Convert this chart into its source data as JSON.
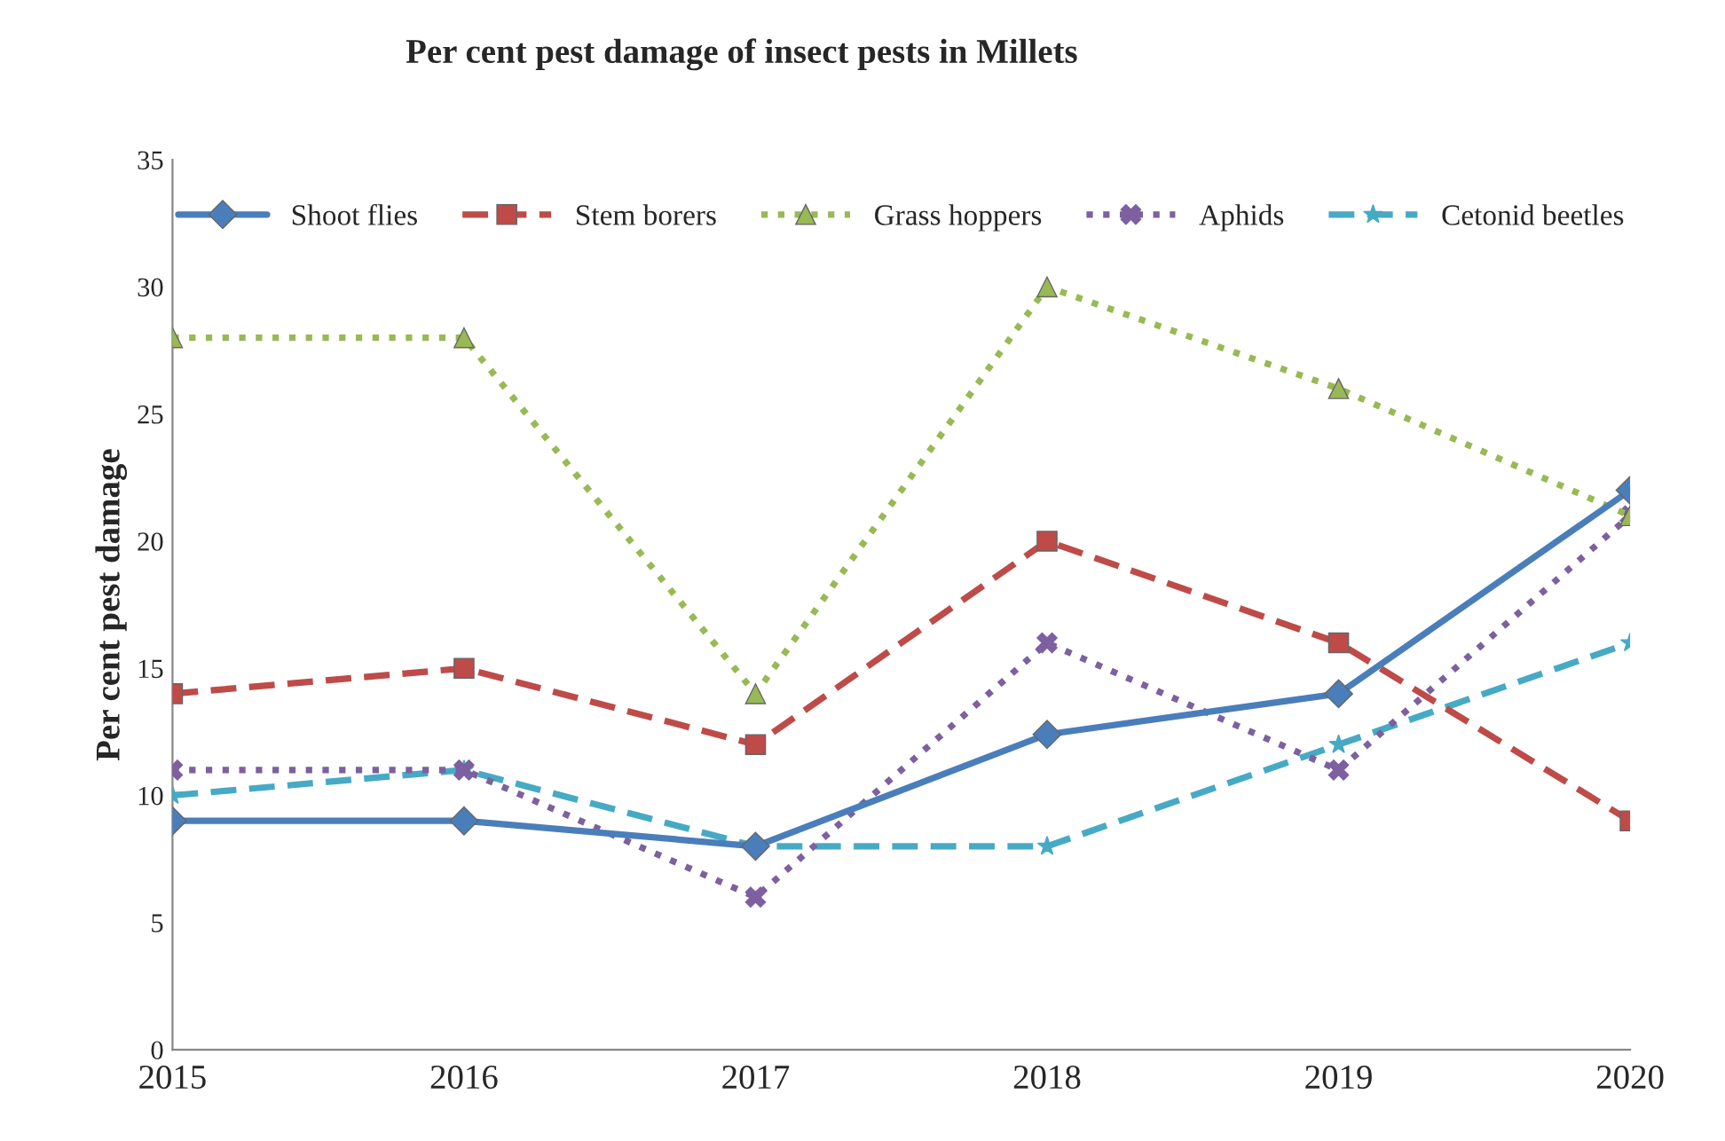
{
  "chart_data": {
    "type": "line",
    "title": "Per cent pest damage of insect pests in Millets",
    "ylabel": "Per cent pest damage",
    "categories": [
      "2015",
      "2016",
      "2017",
      "2018",
      "2019",
      "2020"
    ],
    "series": [
      {
        "name": "Shoot flies",
        "color": "#4a7ebb",
        "marker": "diamond",
        "line_style": "solid",
        "values": [
          9,
          9,
          8,
          12.4,
          14,
          22
        ]
      },
      {
        "name": "Stem borers",
        "color": "#be4b48",
        "marker": "square",
        "line_style": "dashed",
        "values": [
          14,
          15,
          12,
          20,
          16,
          9
        ]
      },
      {
        "name": "Grass hoppers",
        "color": "#98b954",
        "marker": "triangle",
        "line_style": "dotted",
        "values": [
          28,
          28,
          14,
          30,
          26,
          21
        ]
      },
      {
        "name": "Aphids",
        "color": "#7d60a0",
        "marker": "cross",
        "line_style": "dotted",
        "values": [
          11,
          11,
          6,
          16,
          11,
          21
        ]
      },
      {
        "name": "Cetonid beetles",
        "color": "#46aac5",
        "marker": "star",
        "line_style": "dashed",
        "values": [
          10,
          11,
          8,
          8,
          12,
          16
        ]
      }
    ],
    "ylim": [
      0,
      35
    ],
    "yticks": [
      0,
      5,
      10,
      15,
      20,
      25,
      30,
      35
    ],
    "grid": false,
    "legend": "top"
  }
}
